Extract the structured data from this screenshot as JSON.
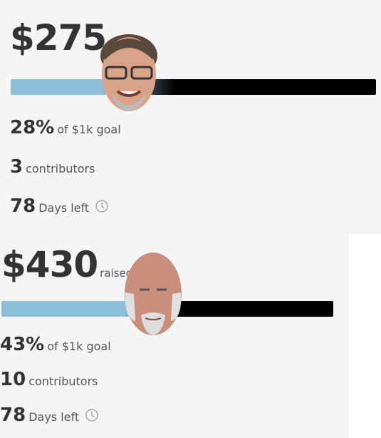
{
  "cards": [
    {
      "amount": "$275",
      "amount_suffix": null,
      "percent": "28%",
      "goal": "of $1k goal",
      "contributors": "3",
      "contributors_label": "contributors",
      "days": "78",
      "days_label": "Days left"
    },
    {
      "amount": "$430",
      "amount_suffix": "raised",
      "percent": "43%",
      "goal": "of $1k goal",
      "contributors": "10",
      "contributors_label": "contributors",
      "days": "78",
      "days_label": "Days left"
    }
  ]
}
